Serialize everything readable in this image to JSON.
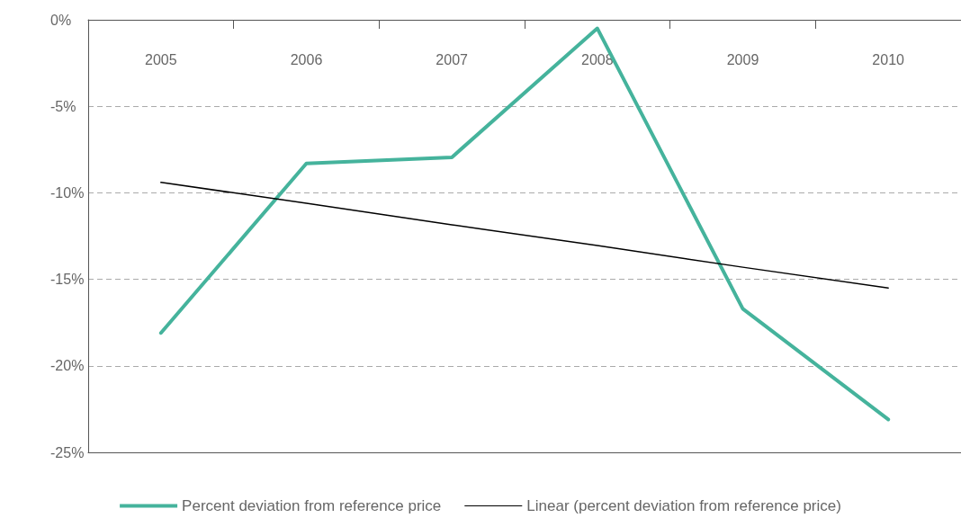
{
  "chart_data": {
    "type": "line",
    "categories": [
      "2005",
      "2006",
      "2007",
      "2008",
      "2009",
      "2010"
    ],
    "series": [
      {
        "name": "Percent deviation from reference price",
        "color": "#45b39c",
        "values": [
          -18.1,
          -8.3,
          -7.95,
          -0.5,
          -16.7,
          -23.1
        ]
      },
      {
        "name": "Linear (percent deviation from reference price)",
        "color": "#000000",
        "values": [
          -9.4,
          -10.6,
          -11.85,
          -13.05,
          -14.3,
          -15.5
        ]
      }
    ],
    "ylim": [
      -25,
      0
    ],
    "yticks": [
      {
        "value": -25,
        "label": "-25%"
      },
      {
        "value": -20,
        "label": "-20%"
      },
      {
        "value": -15,
        "label": "-15%"
      },
      {
        "value": -10,
        "label": "-10%"
      },
      {
        "value": -5,
        "label": "-5%"
      },
      {
        "value": 0,
        "label": "0%"
      }
    ],
    "grid": "y",
    "legend": "bottom",
    "marker": "none"
  }
}
